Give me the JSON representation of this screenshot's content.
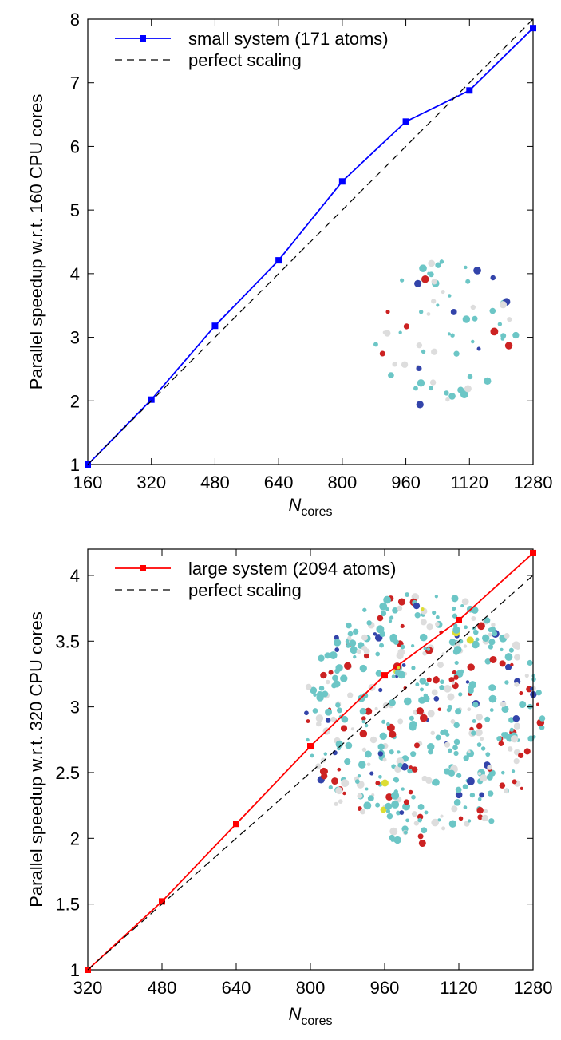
{
  "chart_data": [
    {
      "type": "line",
      "y_label": "Parallel speedup w.r.t. 160 CPU cores",
      "x_label": "N",
      "x_label_sub": "cores",
      "x": [
        160,
        320,
        480,
        640,
        800,
        960,
        1120,
        1280
      ],
      "series": [
        {
          "name": "small system (171 atoms)",
          "color": "#0000ff",
          "marker": "square",
          "dash": false,
          "values": [
            1,
            2.02,
            3.18,
            4.21,
            5.45,
            6.39,
            6.88,
            7.86
          ]
        },
        {
          "name": "perfect scaling",
          "color": "#000000",
          "marker": "none",
          "dash": true,
          "values": [
            1,
            2,
            3,
            4,
            5,
            6,
            7,
            8
          ]
        }
      ],
      "xlim": [
        160,
        1280
      ],
      "xticks": [
        160,
        320,
        480,
        640,
        800,
        960,
        1120,
        1280
      ],
      "ylim": [
        1,
        8
      ],
      "yticks": [
        1,
        2,
        3,
        4,
        5,
        6,
        7,
        8
      ],
      "legend": "top-left",
      "grid": false
    },
    {
      "type": "line",
      "y_label": "Parallel speedup w.r.t. 320 CPU cores",
      "x_label": "N",
      "x_label_sub": "cores",
      "x": [
        320,
        480,
        640,
        800,
        960,
        1120,
        1280
      ],
      "series": [
        {
          "name": "large system (2094 atoms)",
          "color": "#ff0000",
          "marker": "square",
          "dash": false,
          "values": [
            1,
            1.52,
            2.11,
            2.7,
            3.24,
            3.66,
            4.17
          ]
        },
        {
          "name": "perfect scaling",
          "color": "#000000",
          "marker": "none",
          "dash": true,
          "values": [
            1,
            1.5,
            2,
            2.5,
            3,
            3.5,
            4
          ]
        }
      ],
      "xlim": [
        320,
        1280
      ],
      "xticks": [
        320,
        480,
        640,
        800,
        960,
        1120,
        1280
      ],
      "ylim": [
        1,
        4.2
      ],
      "yticks": [
        1,
        1.5,
        2,
        2.5,
        3,
        3.5,
        4
      ],
      "legend": "top-left",
      "grid": false
    }
  ]
}
